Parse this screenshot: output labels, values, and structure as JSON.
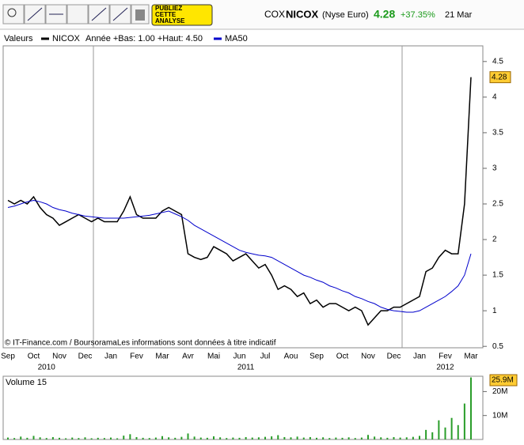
{
  "toolbar": {
    "publish_button": [
      "PUBLIEZ",
      "CETTE",
      "ANALYSE"
    ]
  },
  "quote": {
    "prefix": "COX",
    "name": "NICOX",
    "market": "(Nyse Euro)",
    "price": "4.28",
    "change": "+37.35%",
    "date": "21 Mar"
  },
  "legend_header": "Valeurs",
  "period_info": "Année +Bas: 1.00 +Haut: 4.50",
  "source_note": "© IT-Finance.com / BoursoramaLes informations sont données à titre indicatif",
  "chart_data": [
    {
      "type": "line",
      "categories": [
        "Sep",
        null,
        null,
        null,
        "Oct",
        null,
        null,
        null,
        "Nov",
        null,
        null,
        null,
        "Dec",
        null,
        null,
        null,
        "Jan",
        null,
        null,
        null,
        "Fev",
        null,
        null,
        null,
        "Mar",
        null,
        null,
        null,
        "Avr",
        null,
        null,
        null,
        "Mai",
        null,
        null,
        null,
        "Jun",
        null,
        null,
        null,
        "Jul",
        null,
        null,
        null,
        "Aou",
        null,
        null,
        null,
        "Sep",
        null,
        null,
        null,
        "Oct",
        null,
        null,
        null,
        "Nov",
        null,
        null,
        null,
        "Dec",
        null,
        null,
        null,
        "Jan",
        null,
        null,
        null,
        "Fev",
        null,
        null,
        null,
        "Mar"
      ],
      "year_categories": [
        null,
        null,
        null,
        null,
        null,
        null,
        "2010",
        null,
        null,
        null,
        null,
        null,
        null,
        null,
        null,
        null,
        null,
        null,
        null,
        null,
        null,
        null,
        null,
        null,
        null,
        null,
        null,
        null,
        null,
        null,
        null,
        null,
        null,
        null,
        null,
        null,
        null,
        "2011",
        null,
        null,
        null,
        null,
        null,
        null,
        null,
        null,
        null,
        null,
        null,
        null,
        null,
        null,
        null,
        null,
        null,
        null,
        null,
        null,
        null,
        null,
        null,
        null,
        null,
        null,
        null,
        null,
        null,
        null,
        "2012",
        null,
        null,
        null,
        null
      ],
      "series": [
        {
          "name": "NICOX",
          "color": "#000000",
          "values": [
            2.55,
            2.5,
            2.55,
            2.5,
            2.6,
            2.45,
            2.35,
            2.3,
            2.2,
            2.25,
            2.3,
            2.35,
            2.3,
            2.25,
            2.3,
            2.25,
            2.25,
            2.25,
            2.4,
            2.6,
            2.35,
            2.3,
            2.3,
            2.3,
            2.4,
            2.45,
            2.4,
            2.35,
            1.8,
            1.75,
            1.72,
            1.75,
            1.9,
            1.85,
            1.8,
            1.7,
            1.75,
            1.8,
            1.7,
            1.6,
            1.65,
            1.5,
            1.3,
            1.35,
            1.3,
            1.2,
            1.25,
            1.1,
            1.15,
            1.05,
            1.1,
            1.1,
            1.05,
            1.0,
            1.05,
            1.0,
            0.8,
            0.9,
            1.0,
            1.0,
            1.05,
            1.05,
            1.1,
            1.15,
            1.2,
            1.55,
            1.6,
            1.75,
            1.85,
            1.8,
            1.8,
            2.5,
            4.28
          ]
        },
        {
          "name": "MA50",
          "color": "#0000cc",
          "values": [
            2.45,
            2.47,
            2.5,
            2.53,
            2.55,
            2.53,
            2.5,
            2.45,
            2.42,
            2.4,
            2.37,
            2.35,
            2.33,
            2.32,
            2.31,
            2.3,
            2.3,
            2.3,
            2.3,
            2.31,
            2.32,
            2.33,
            2.34,
            2.36,
            2.38,
            2.4,
            2.36,
            2.32,
            2.27,
            2.2,
            2.15,
            2.1,
            2.05,
            2.0,
            1.95,
            1.9,
            1.85,
            1.82,
            1.8,
            1.78,
            1.77,
            1.75,
            1.7,
            1.65,
            1.6,
            1.55,
            1.5,
            1.47,
            1.43,
            1.4,
            1.35,
            1.32,
            1.28,
            1.25,
            1.2,
            1.17,
            1.13,
            1.1,
            1.05,
            1.02,
            1.0,
            0.99,
            0.98,
            0.98,
            1.0,
            1.05,
            1.1,
            1.15,
            1.2,
            1.27,
            1.35,
            1.5,
            1.8
          ]
        }
      ],
      "ylim": [
        0.48,
        4.72
      ],
      "yticks": [
        0.5,
        1,
        1.5,
        2,
        2.5,
        3,
        3.5,
        4,
        4.5
      ],
      "last_value_color": "#ffcc33"
    },
    {
      "type": "bar",
      "title": "Volume 15",
      "color": "#2a9d2a",
      "values": [
        0.8,
        0.6,
        1.2,
        0.7,
        1.5,
        0.9,
        0.6,
        1.0,
        0.7,
        0.5,
        0.8,
        0.6,
        0.9,
        0.5,
        0.7,
        0.6,
        0.8,
        0.5,
        1.6,
        2.2,
        1.0,
        0.7,
        0.6,
        0.8,
        1.4,
        0.9,
        0.7,
        1.1,
        2.5,
        1.2,
        0.8,
        0.7,
        1.3,
        0.9,
        0.6,
        0.8,
        0.7,
        1.0,
        0.8,
        0.9,
        1.1,
        1.3,
        1.8,
        1.0,
        0.9,
        1.2,
        0.8,
        1.0,
        0.7,
        0.9,
        0.6,
        0.8,
        0.7,
        0.9,
        0.6,
        0.8,
        1.9,
        1.2,
        0.9,
        0.7,
        1.0,
        0.8,
        0.9,
        1.1,
        1.5,
        4.0,
        3.0,
        8.0,
        5.0,
        9.0,
        6.0,
        15.0,
        25.9
      ],
      "last_value_label": "25.9M",
      "ylim": [
        0,
        26.4
      ],
      "yticks": [
        {
          "value": 10,
          "label": "10M"
        },
        {
          "value": 20,
          "label": "20M"
        }
      ]
    }
  ]
}
